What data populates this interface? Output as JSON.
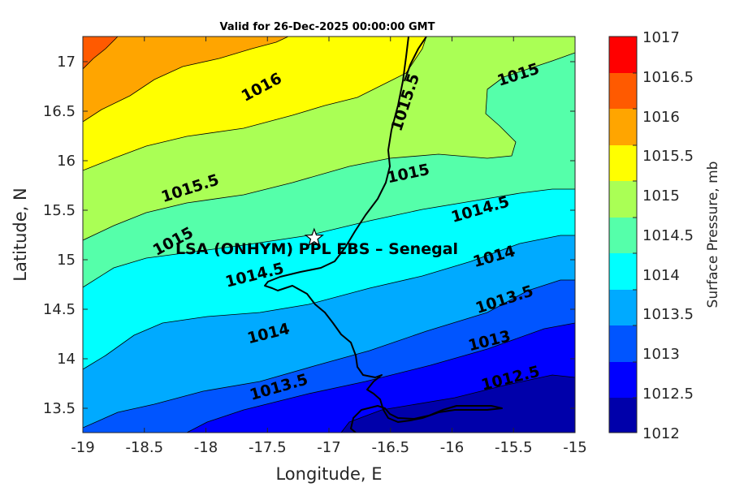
{
  "title": "Valid for 26-Dec-2025 00:00:00 GMT",
  "x_axis": {
    "label": "Longitude, E",
    "ticks": [
      "-19",
      "-18.5",
      "-18",
      "-17.5",
      "-17",
      "-16.5",
      "-16",
      "-15.5",
      "-15"
    ]
  },
  "y_axis": {
    "label": "Latitude, N",
    "ticks": [
      "17",
      "16.5",
      "16",
      "15.5",
      "15",
      "14.5",
      "14",
      "13.5"
    ]
  },
  "colorbar": {
    "label": "Surface Pressure, mb",
    "ticks": [
      "1017",
      "1016.5",
      "1016",
      "1015.5",
      "1015",
      "1014.5",
      "1014",
      "1013.5",
      "1013",
      "1012.5",
      "1012"
    ],
    "colors": [
      "#ff0000",
      "#ff5a00",
      "#ffa500",
      "#ffff00",
      "#aaff55",
      "#55ffaa",
      "#00ffff",
      "#00aaff",
      "#0055ff",
      "#0000ff",
      "#0000aa"
    ]
  },
  "contour_labels": [
    "1016",
    "1015.5",
    "1015",
    "1015.5",
    "1015",
    "1015",
    "1014.5",
    "1014.5",
    "1014",
    "1014",
    "1013.5",
    "1013.5",
    "1013",
    "1012.5"
  ],
  "station": {
    "name": "LSA (ONHYM) PPL EBS  – Senegal",
    "longitude": -17.12,
    "latitude": 15.22
  }
}
